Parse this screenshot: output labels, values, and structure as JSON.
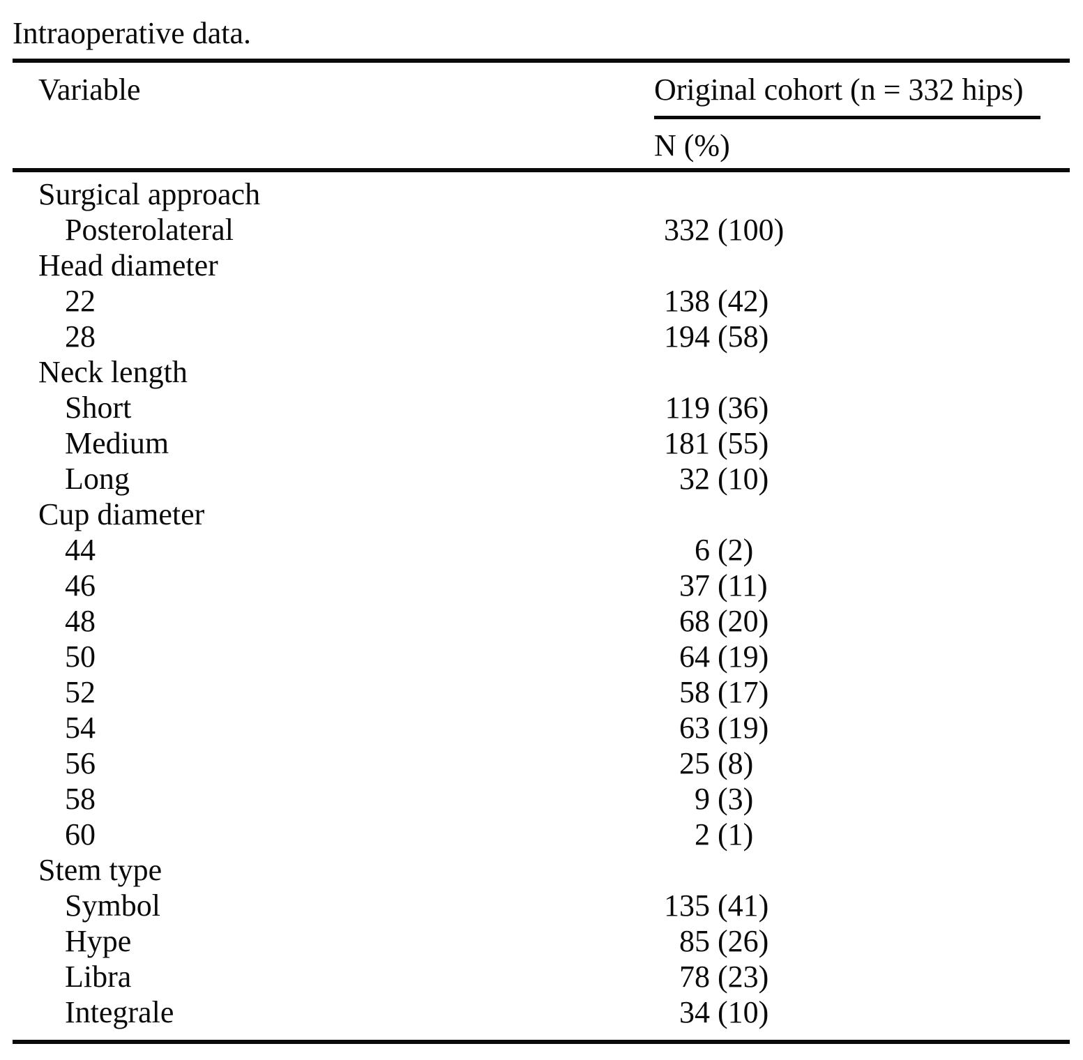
{
  "table": {
    "title": "Intraoperative data.",
    "col1_header": "Variable",
    "col2_header": "Original cohort (n = 332 hips)",
    "col2_subheader": "N (%)",
    "groups": [
      {
        "label": "Surgical approach",
        "rows": [
          {
            "label": "Posterolateral",
            "n": "332",
            "pct": "(100)"
          }
        ]
      },
      {
        "label": "Head diameter",
        "rows": [
          {
            "label": "22",
            "n": "138",
            "pct": "(42)"
          },
          {
            "label": "28",
            "n": "194",
            "pct": "(58)"
          }
        ]
      },
      {
        "label": "Neck length",
        "rows": [
          {
            "label": "Short",
            "n": "119",
            "pct": "(36)"
          },
          {
            "label": "Medium",
            "n": "181",
            "pct": "(55)"
          },
          {
            "label": "Long",
            "n": "32",
            "pct": "(10)"
          }
        ]
      },
      {
        "label": "Cup diameter",
        "rows": [
          {
            "label": "44",
            "n": "6",
            "pct": "(2)"
          },
          {
            "label": "46",
            "n": "37",
            "pct": "(11)"
          },
          {
            "label": "48",
            "n": "68",
            "pct": "(20)"
          },
          {
            "label": "50",
            "n": "64",
            "pct": "(19)"
          },
          {
            "label": "52",
            "n": "58",
            "pct": "(17)"
          },
          {
            "label": "54",
            "n": "63",
            "pct": "(19)"
          },
          {
            "label": "56",
            "n": "25",
            "pct": "(8)"
          },
          {
            "label": "58",
            "n": "9",
            "pct": "(3)"
          },
          {
            "label": "60",
            "n": "2",
            "pct": "(1)"
          }
        ]
      },
      {
        "label": "Stem type",
        "rows": [
          {
            "label": "Symbol",
            "n": "135",
            "pct": "(41)"
          },
          {
            "label": "Hype",
            "n": "85",
            "pct": "(26)"
          },
          {
            "label": "Libra",
            "n": "78",
            "pct": "(23)"
          },
          {
            "label": "Integrale",
            "n": "34",
            "pct": "(10)"
          }
        ]
      }
    ]
  }
}
